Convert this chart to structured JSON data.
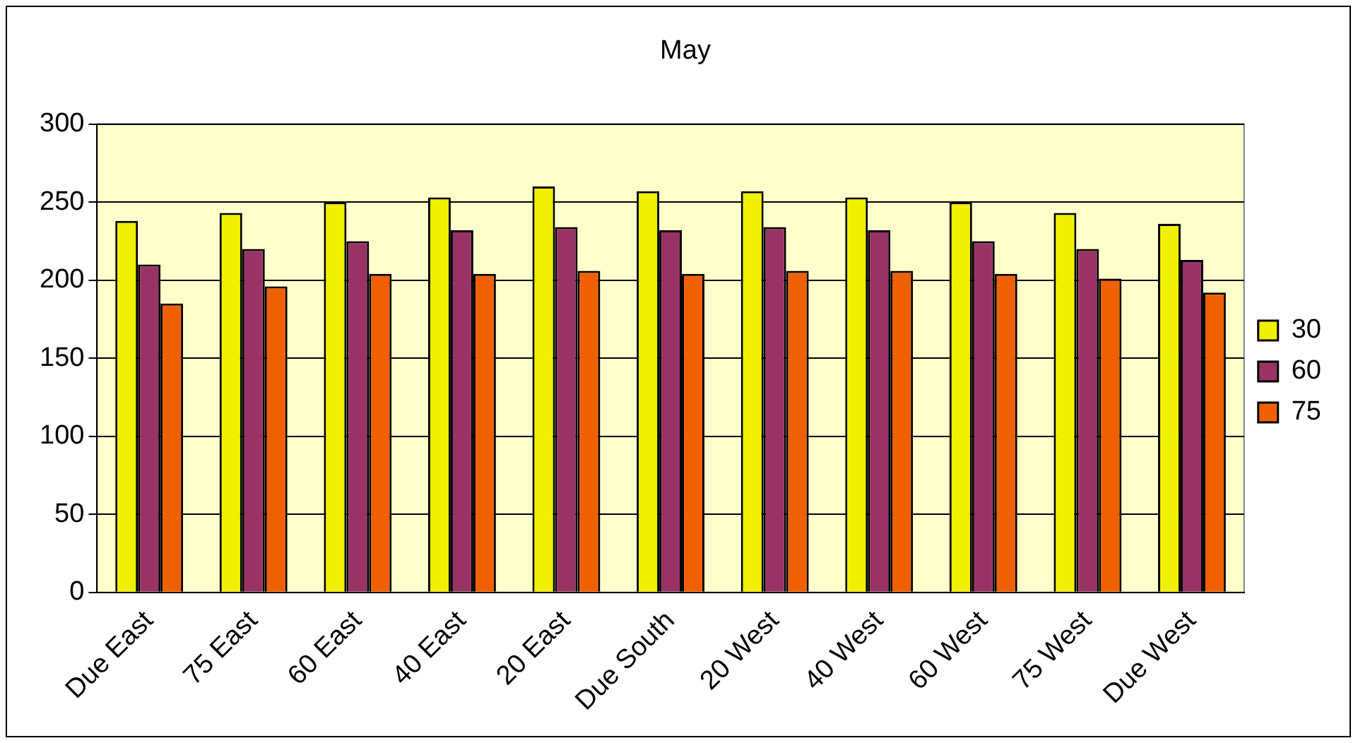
{
  "chart_data": {
    "type": "bar",
    "title": "May",
    "categories": [
      "Due East",
      "75 East",
      "60 East",
      "40 East",
      "20 East",
      "Due South",
      "20 West",
      "40 West",
      "60 West",
      "75 West",
      "Due West"
    ],
    "series": [
      {
        "name": "30",
        "color": "#f0f000",
        "values": [
          238,
          243,
          250,
          253,
          260,
          257,
          257,
          253,
          250,
          243,
          236
        ]
      },
      {
        "name": "60",
        "color": "#993366",
        "values": [
          210,
          220,
          225,
          232,
          234,
          232,
          234,
          232,
          225,
          220,
          213
        ]
      },
      {
        "name": "75",
        "color": "#f06000",
        "values": [
          185,
          196,
          204,
          204,
          206,
          204,
          206,
          206,
          204,
          201,
          192
        ]
      }
    ],
    "ylim": [
      0,
      300
    ],
    "yticks": [
      0,
      50,
      100,
      150,
      200,
      250,
      300
    ],
    "grid": "y",
    "legend": "right"
  }
}
